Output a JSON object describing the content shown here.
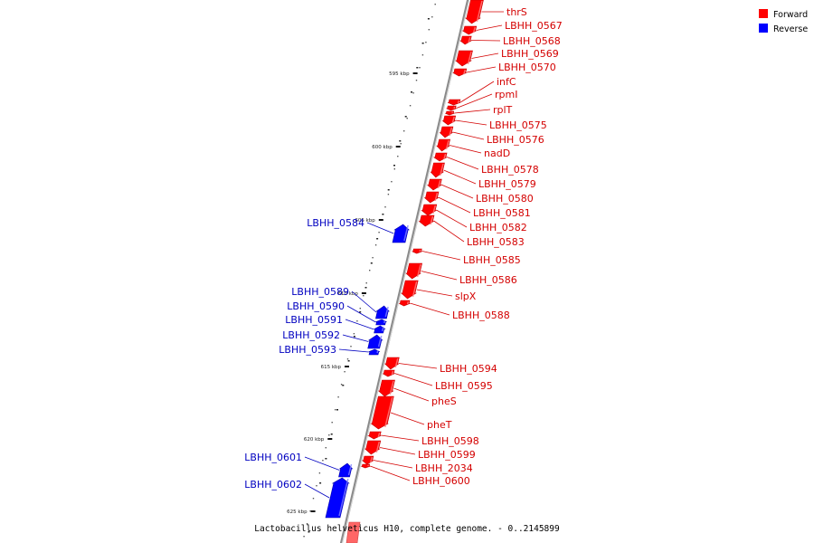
{
  "caption": "Lactobacillus helveticus H10, complete genome. - 0..2145899",
  "legend": {
    "items": [
      {
        "label": "Forward",
        "color": "#ff0000"
      },
      {
        "label": "Reverse",
        "color": "#0000ff"
      }
    ]
  },
  "colors": {
    "forward": "#ff0000",
    "forward_shade": "#c40000",
    "forward_light": "#ff8080",
    "reverse": "#0000ff",
    "reverse_shade": "#0000b0",
    "reverse_light": "#8080ff",
    "backbone": "#8a8a8a",
    "label_forward": "#d40000",
    "label_reverse": "#0000c0"
  },
  "axis_ticks": [
    {
      "label": "595 kbp"
    },
    {
      "label": "600 kbp"
    },
    {
      "label": "605 kbp"
    },
    {
      "label": "610 kbp"
    },
    {
      "label": "615 kbp"
    },
    {
      "label": "620 kbp"
    },
    {
      "label": "625 kbp"
    }
  ],
  "genes": [
    {
      "name": "thrS",
      "strand": "forward"
    },
    {
      "name": "LBHH_0567",
      "strand": "forward"
    },
    {
      "name": "LBHH_0568",
      "strand": "forward"
    },
    {
      "name": "LBHH_0569",
      "strand": "forward"
    },
    {
      "name": "LBHH_0570",
      "strand": "forward"
    },
    {
      "name": "infC",
      "strand": "forward"
    },
    {
      "name": "rpmI",
      "strand": "forward"
    },
    {
      "name": "rplT",
      "strand": "forward"
    },
    {
      "name": "LBHH_0575",
      "strand": "forward"
    },
    {
      "name": "LBHH_0576",
      "strand": "forward"
    },
    {
      "name": "nadD",
      "strand": "forward"
    },
    {
      "name": "LBHH_0578",
      "strand": "forward"
    },
    {
      "name": "LBHH_0579",
      "strand": "forward"
    },
    {
      "name": "LBHH_0580",
      "strand": "forward"
    },
    {
      "name": "LBHH_0581",
      "strand": "forward"
    },
    {
      "name": "LBHH_0582",
      "strand": "forward"
    },
    {
      "name": "LBHH_0583",
      "strand": "forward"
    },
    {
      "name": "LBHH_0584",
      "strand": "reverse"
    },
    {
      "name": "LBHH_0585",
      "strand": "forward"
    },
    {
      "name": "LBHH_0586",
      "strand": "forward"
    },
    {
      "name": "slpX",
      "strand": "forward"
    },
    {
      "name": "LBHH_0588",
      "strand": "forward"
    },
    {
      "name": "LBHH_0589",
      "strand": "reverse"
    },
    {
      "name": "LBHH_0590",
      "strand": "reverse"
    },
    {
      "name": "LBHH_0591",
      "strand": "reverse"
    },
    {
      "name": "LBHH_0592",
      "strand": "reverse"
    },
    {
      "name": "LBHH_0593",
      "strand": "reverse"
    },
    {
      "name": "LBHH_0594",
      "strand": "forward"
    },
    {
      "name": "LBHH_0595",
      "strand": "forward"
    },
    {
      "name": "pheS",
      "strand": "forward"
    },
    {
      "name": "pheT",
      "strand": "forward"
    },
    {
      "name": "LBHH_0598",
      "strand": "forward"
    },
    {
      "name": "LBHH_0599",
      "strand": "forward"
    },
    {
      "name": "LBHH_2034",
      "strand": "forward"
    },
    {
      "name": "LBHH_0600",
      "strand": "forward"
    },
    {
      "name": "LBHH_0601",
      "strand": "reverse"
    },
    {
      "name": "LBHH_0602",
      "strand": "reverse"
    }
  ]
}
